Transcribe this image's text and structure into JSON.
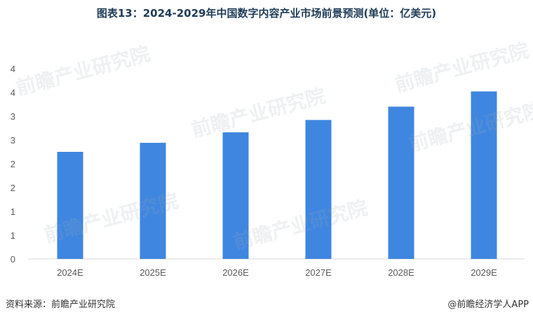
{
  "title": "图表13：2024-2029年中国数字内容产业市场前景预测(单位：亿美元)",
  "source_label": "资料来源：前瞻产业研究院",
  "brand_label": "@前瞻经济学人APP",
  "watermark_text": "前瞻产业研究院",
  "colors": {
    "bar": "#3f86e0",
    "grid": "#d9d9d9",
    "title": "#1f3b57"
  },
  "chart_data": {
    "type": "bar",
    "title": "图表13：2024-2029年中国数字内容产业市场前景预测(单位：亿美元)",
    "categories": [
      "2024E",
      "2025E",
      "2026E",
      "2027E",
      "2028E",
      "2029E"
    ],
    "series": [
      {
        "values": [
          2.25,
          2.44,
          2.66,
          2.92,
          3.2,
          3.52
        ]
      }
    ],
    "ylim": [
      0,
      4.5
    ],
    "yticks": [
      0,
      0.5,
      1,
      1.5,
      2,
      2.5,
      3,
      3.5,
      4
    ],
    "ytick_labels": [
      "0",
      "1",
      "1",
      "2",
      "2",
      "3",
      "3",
      "4",
      "4"
    ],
    "grid": false,
    "legend": "none"
  }
}
